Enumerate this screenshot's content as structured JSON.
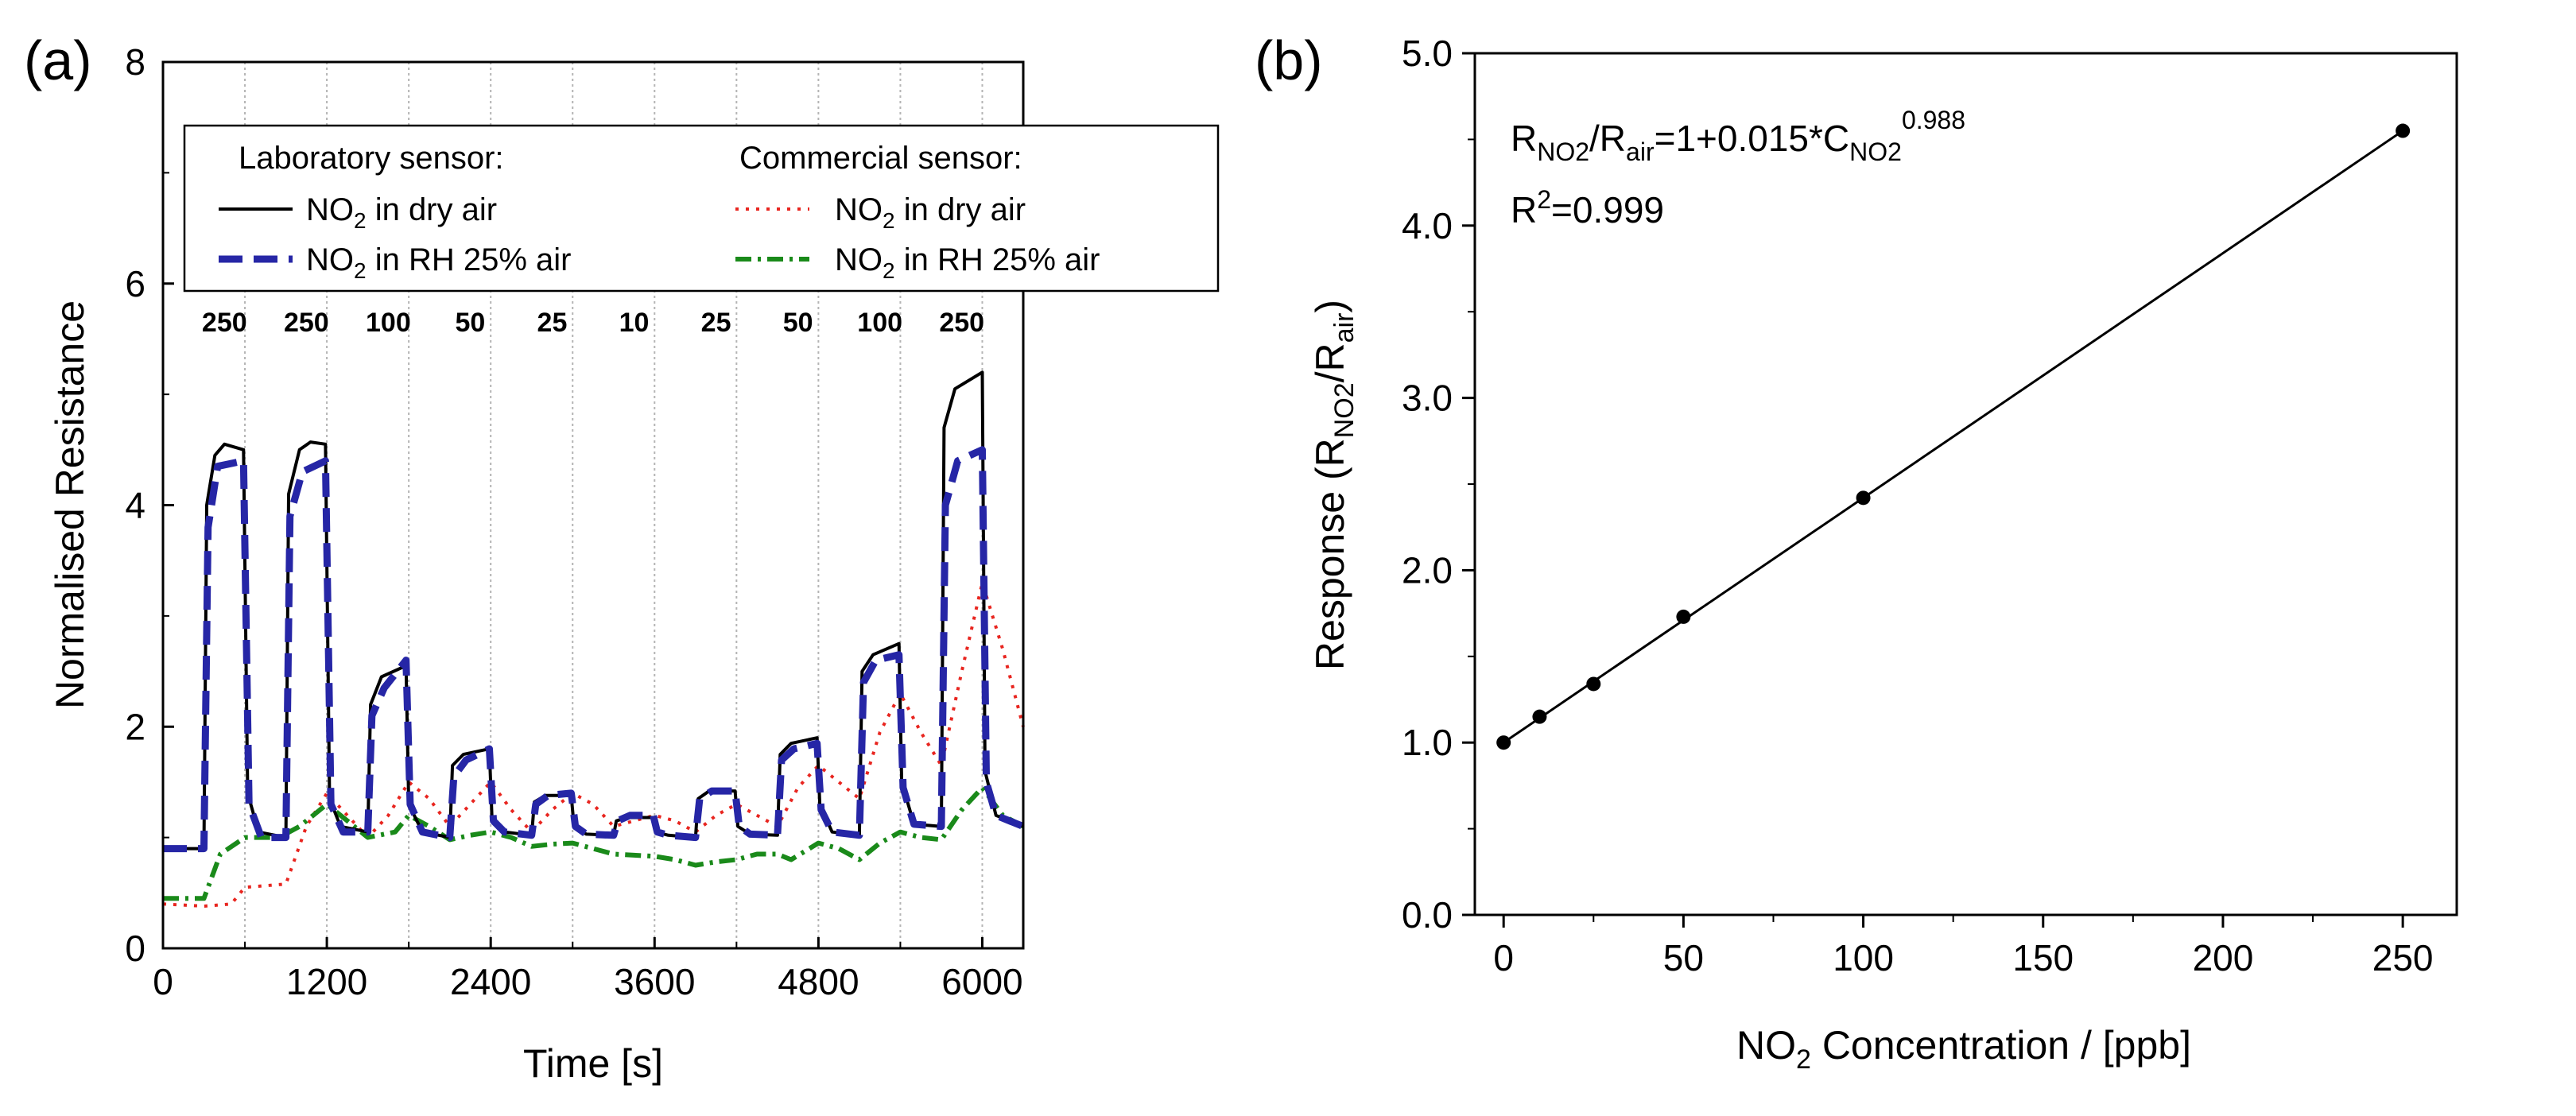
{
  "panel_labels": {
    "a": "(a)",
    "b": "(b)"
  },
  "chart_data": [
    {
      "type": "line",
      "title": "",
      "xlabel": "Time [s]",
      "ylabel": "Normalised Resistance",
      "xlim": [
        0,
        6300
      ],
      "ylim": [
        0,
        8
      ],
      "xticks": [
        0,
        1200,
        2400,
        3600,
        4800,
        6000
      ],
      "yticks": [
        0,
        2,
        4,
        6,
        8
      ],
      "vlines": [
        600,
        1200,
        1800,
        2400,
        3000,
        3600,
        4200,
        4800,
        5400,
        6000
      ],
      "pulse_labels": [
        {
          "x": 450,
          "text": "250"
        },
        {
          "x": 1050,
          "text": "250"
        },
        {
          "x": 1650,
          "text": "100"
        },
        {
          "x": 2250,
          "text": "50"
        },
        {
          "x": 2850,
          "text": "25"
        },
        {
          "x": 3450,
          "text": "10"
        },
        {
          "x": 4050,
          "text": "25"
        },
        {
          "x": 4650,
          "text": "50"
        },
        {
          "x": 5250,
          "text": "100"
        },
        {
          "x": 5850,
          "text": "250"
        }
      ],
      "legend": {
        "group_lab": "Laboratory sensor:",
        "group_com": "Commercial sensor:",
        "lab_dry": {
          "pre": "NO",
          "sub": "2",
          "post": " in dry air"
        },
        "lab_rh": {
          "pre": "NO",
          "sub": "2",
          "post": " in RH 25% air"
        },
        "com_dry": {
          "pre": "NO",
          "sub": "2",
          "post": " in dry air"
        },
        "com_rh": {
          "pre": "NO",
          "sub": "2",
          "post": " in RH 25% air"
        }
      },
      "series": [
        {
          "name": "Laboratory sensor: NO2 in dry air",
          "color": "#000000",
          "dash": "solid",
          "points": [
            [
              0,
              0.9
            ],
            [
              300,
              0.9
            ],
            [
              320,
              4.0
            ],
            [
              380,
              4.45
            ],
            [
              450,
              4.55
            ],
            [
              590,
              4.5
            ],
            [
              620,
              1.4
            ],
            [
              700,
              1.05
            ],
            [
              900,
              1.0
            ],
            [
              920,
              4.1
            ],
            [
              1000,
              4.5
            ],
            [
              1080,
              4.57
            ],
            [
              1190,
              4.55
            ],
            [
              1220,
              1.35
            ],
            [
              1300,
              1.1
            ],
            [
              1500,
              1.05
            ],
            [
              1520,
              2.2
            ],
            [
              1600,
              2.45
            ],
            [
              1780,
              2.55
            ],
            [
              1800,
              1.3
            ],
            [
              1900,
              1.05
            ],
            [
              2100,
              1.0
            ],
            [
              2120,
              1.65
            ],
            [
              2200,
              1.75
            ],
            [
              2390,
              1.8
            ],
            [
              2410,
              1.15
            ],
            [
              2500,
              1.05
            ],
            [
              2700,
              1.02
            ],
            [
              2720,
              1.32
            ],
            [
              2800,
              1.38
            ],
            [
              2990,
              1.38
            ],
            [
              3010,
              1.1
            ],
            [
              3100,
              1.03
            ],
            [
              3300,
              1.02
            ],
            [
              3320,
              1.15
            ],
            [
              3400,
              1.18
            ],
            [
              3590,
              1.18
            ],
            [
              3610,
              1.05
            ],
            [
              3700,
              1.02
            ],
            [
              3900,
              1.0
            ],
            [
              3920,
              1.35
            ],
            [
              4000,
              1.42
            ],
            [
              4190,
              1.42
            ],
            [
              4210,
              1.1
            ],
            [
              4300,
              1.03
            ],
            [
              4500,
              1.02
            ],
            [
              4520,
              1.75
            ],
            [
              4600,
              1.85
            ],
            [
              4790,
              1.9
            ],
            [
              4810,
              1.3
            ],
            [
              4900,
              1.05
            ],
            [
              5100,
              1.02
            ],
            [
              5120,
              2.5
            ],
            [
              5200,
              2.65
            ],
            [
              5390,
              2.75
            ],
            [
              5410,
              1.5
            ],
            [
              5500,
              1.12
            ],
            [
              5700,
              1.1
            ],
            [
              5720,
              4.7
            ],
            [
              5800,
              5.05
            ],
            [
              6000,
              5.2
            ],
            [
              6020,
              1.6
            ],
            [
              6100,
              1.2
            ],
            [
              6300,
              1.1
            ]
          ]
        },
        {
          "name": "Laboratory sensor: NO2 in RH 25% air",
          "color": "#2626a6",
          "dash": "dash",
          "points": [
            [
              0,
              0.9
            ],
            [
              300,
              0.9
            ],
            [
              330,
              3.8
            ],
            [
              400,
              4.35
            ],
            [
              590,
              4.4
            ],
            [
              630,
              1.3
            ],
            [
              720,
              1.0
            ],
            [
              900,
              1.0
            ],
            [
              930,
              3.9
            ],
            [
              1020,
              4.3
            ],
            [
              1190,
              4.4
            ],
            [
              1230,
              1.3
            ],
            [
              1320,
              1.05
            ],
            [
              1500,
              1.05
            ],
            [
              1530,
              2.1
            ],
            [
              1620,
              2.35
            ],
            [
              1780,
              2.6
            ],
            [
              1810,
              1.3
            ],
            [
              1900,
              1.05
            ],
            [
              2100,
              1.0
            ],
            [
              2130,
              1.55
            ],
            [
              2220,
              1.7
            ],
            [
              2390,
              1.8
            ],
            [
              2420,
              1.15
            ],
            [
              2500,
              1.05
            ],
            [
              2700,
              1.02
            ],
            [
              2730,
              1.3
            ],
            [
              2820,
              1.38
            ],
            [
              2990,
              1.4
            ],
            [
              3020,
              1.1
            ],
            [
              3100,
              1.03
            ],
            [
              3300,
              1.02
            ],
            [
              3330,
              1.15
            ],
            [
              3420,
              1.2
            ],
            [
              3590,
              1.2
            ],
            [
              3620,
              1.05
            ],
            [
              3700,
              1.02
            ],
            [
              3900,
              1.0
            ],
            [
              3930,
              1.35
            ],
            [
              4020,
              1.42
            ],
            [
              4190,
              1.42
            ],
            [
              4220,
              1.1
            ],
            [
              4300,
              1.03
            ],
            [
              4500,
              1.02
            ],
            [
              4530,
              1.7
            ],
            [
              4620,
              1.8
            ],
            [
              4790,
              1.85
            ],
            [
              4820,
              1.25
            ],
            [
              4900,
              1.05
            ],
            [
              5100,
              1.02
            ],
            [
              5130,
              2.4
            ],
            [
              5220,
              2.6
            ],
            [
              5390,
              2.65
            ],
            [
              5420,
              1.45
            ],
            [
              5500,
              1.12
            ],
            [
              5700,
              1.1
            ],
            [
              5730,
              4.0
            ],
            [
              5820,
              4.4
            ],
            [
              6000,
              4.5
            ],
            [
              6030,
              1.5
            ],
            [
              6100,
              1.2
            ],
            [
              6300,
              1.1
            ]
          ]
        },
        {
          "name": "Commercial sensor: NO2 in dry air",
          "color": "#e8251f",
          "dash": "dot",
          "points": [
            [
              0,
              0.4
            ],
            [
              300,
              0.38
            ],
            [
              500,
              0.4
            ],
            [
              600,
              0.55
            ],
            [
              900,
              0.58
            ],
            [
              1050,
              1.1
            ],
            [
              1200,
              1.4
            ],
            [
              1350,
              1.2
            ],
            [
              1500,
              1.0
            ],
            [
              1650,
              1.2
            ],
            [
              1800,
              1.5
            ],
            [
              1950,
              1.35
            ],
            [
              2100,
              1.1
            ],
            [
              2250,
              1.3
            ],
            [
              2400,
              1.5
            ],
            [
              2550,
              1.25
            ],
            [
              2700,
              1.05
            ],
            [
              2850,
              1.25
            ],
            [
              3000,
              1.4
            ],
            [
              3150,
              1.3
            ],
            [
              3300,
              1.1
            ],
            [
              3450,
              1.15
            ],
            [
              3600,
              1.2
            ],
            [
              3750,
              1.15
            ],
            [
              3900,
              1.05
            ],
            [
              4050,
              1.2
            ],
            [
              4200,
              1.3
            ],
            [
              4350,
              1.2
            ],
            [
              4500,
              1.1
            ],
            [
              4650,
              1.45
            ],
            [
              4800,
              1.65
            ],
            [
              4950,
              1.5
            ],
            [
              5100,
              1.35
            ],
            [
              5250,
              1.95
            ],
            [
              5400,
              2.3
            ],
            [
              5550,
              1.95
            ],
            [
              5700,
              1.65
            ],
            [
              5850,
              2.5
            ],
            [
              6000,
              3.3
            ],
            [
              6150,
              2.7
            ],
            [
              6300,
              2.0
            ]
          ]
        },
        {
          "name": "Commercial sensor: NO2 in RH 25% air",
          "color": "#1a8a1a",
          "dash": "dashdot",
          "points": [
            [
              0,
              0.45
            ],
            [
              300,
              0.45
            ],
            [
              420,
              0.85
            ],
            [
              600,
              1.0
            ],
            [
              850,
              1.0
            ],
            [
              1000,
              1.1
            ],
            [
              1200,
              1.3
            ],
            [
              1350,
              1.15
            ],
            [
              1500,
              1.0
            ],
            [
              1700,
              1.05
            ],
            [
              1800,
              1.2
            ],
            [
              1950,
              1.1
            ],
            [
              2100,
              0.98
            ],
            [
              2250,
              1.02
            ],
            [
              2400,
              1.05
            ],
            [
              2550,
              1.0
            ],
            [
              2700,
              0.92
            ],
            [
              2850,
              0.94
            ],
            [
              3000,
              0.95
            ],
            [
              3150,
              0.9
            ],
            [
              3300,
              0.85
            ],
            [
              3450,
              0.84
            ],
            [
              3600,
              0.83
            ],
            [
              3750,
              0.8
            ],
            [
              3900,
              0.75
            ],
            [
              4050,
              0.78
            ],
            [
              4200,
              0.8
            ],
            [
              4350,
              0.85
            ],
            [
              4500,
              0.85
            ],
            [
              4600,
              0.8
            ],
            [
              4800,
              0.95
            ],
            [
              4950,
              0.9
            ],
            [
              5100,
              0.8
            ],
            [
              5250,
              0.95
            ],
            [
              5400,
              1.05
            ],
            [
              5550,
              1.0
            ],
            [
              5700,
              0.98
            ],
            [
              5850,
              1.25
            ],
            [
              6000,
              1.45
            ],
            [
              6150,
              1.2
            ],
            [
              6300,
              1.1
            ]
          ]
        }
      ]
    },
    {
      "type": "scatter",
      "title": "",
      "xlabel": {
        "pre": "NO",
        "sub": "2",
        "post": " Concentration / [ppb]"
      },
      "ylabel": {
        "pre": "Response (R",
        "sub1": "NO2",
        "mid": "/R",
        "sub2": "air",
        "post": ")"
      },
      "xlim": [
        -8,
        265
      ],
      "ylim": [
        0,
        5
      ],
      "xticks": [
        0,
        50,
        100,
        150,
        200,
        250
      ],
      "yticks": [
        0,
        1,
        2,
        3,
        4,
        5
      ],
      "ytick_labels": [
        "0.0",
        "1.0",
        "2.0",
        "3.0",
        "4.0",
        "5.0"
      ],
      "x": [
        0,
        10,
        25,
        50,
        100,
        250
      ],
      "y": [
        1.0,
        1.15,
        1.34,
        1.73,
        2.42,
        4.55
      ],
      "fit": {
        "x": [
          0,
          250
        ],
        "y": [
          1.0,
          4.55
        ],
        "equation": {
          "a": "R",
          "a_sub": "NO2",
          "b": "/R",
          "b_sub": "air",
          "c": "=1+0.015*C",
          "c_sub": "NO2",
          "c_sup": "0.988"
        },
        "r2": {
          "a": "R",
          "sup": "2",
          "b": "=0.999"
        }
      }
    }
  ]
}
